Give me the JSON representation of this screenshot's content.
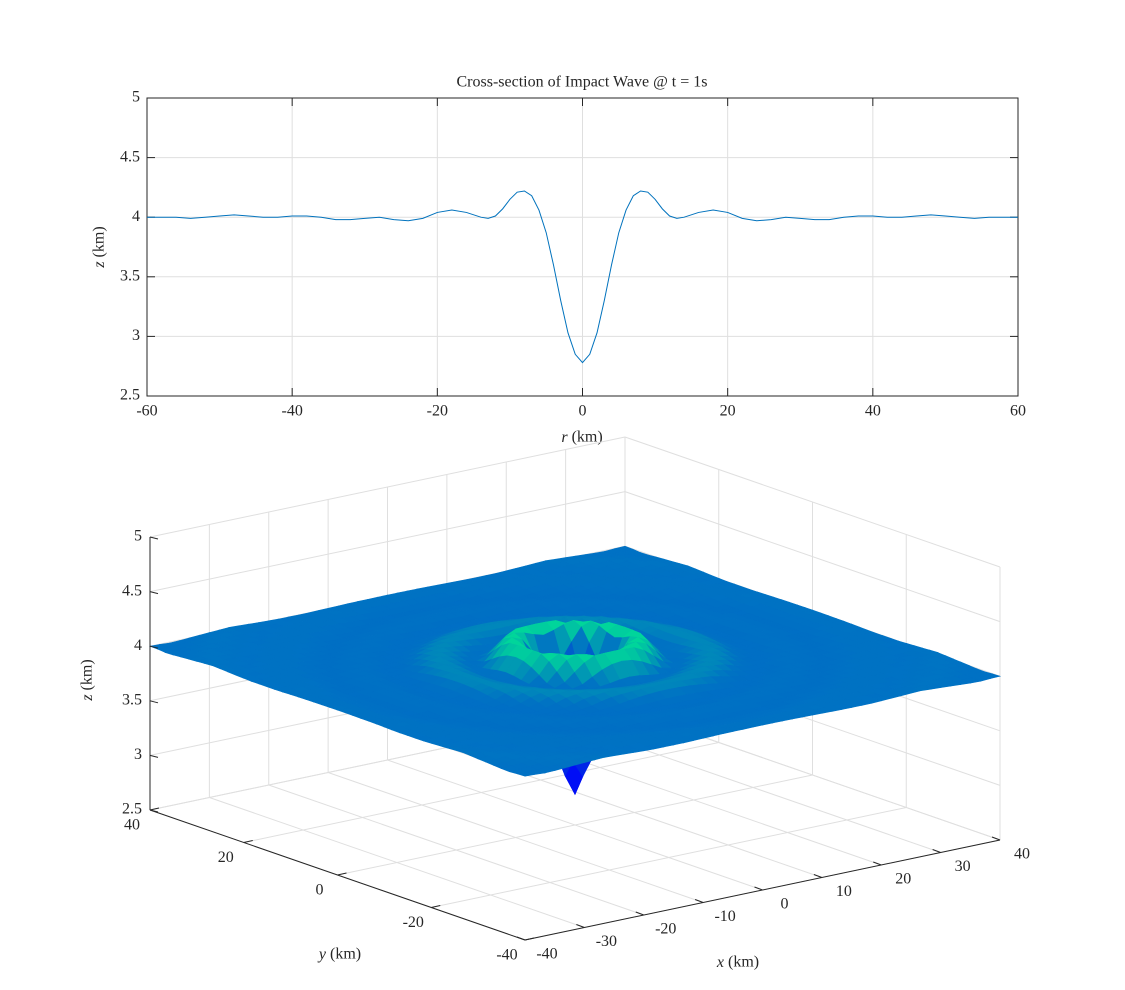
{
  "chart_data": [
    {
      "type": "line",
      "title": "Cross-section of Impact Wave @ t = 1s",
      "xlabel": "r (km)",
      "ylabel": "z (km)",
      "x": [
        -60,
        -58,
        -56,
        -54,
        -52,
        -50,
        -48,
        -46,
        -44,
        -42,
        -40,
        -38,
        -36,
        -34,
        -32,
        -30,
        -28,
        -26,
        -24,
        -22,
        -20,
        -18,
        -16,
        -14,
        -13,
        -12,
        -11,
        -10,
        -9,
        -8,
        -7,
        -6,
        -5,
        -4,
        -3,
        -2,
        -1,
        0,
        1,
        2,
        3,
        4,
        5,
        6,
        7,
        8,
        9,
        10,
        11,
        12,
        13,
        14,
        16,
        18,
        20,
        22,
        24,
        26,
        28,
        30,
        32,
        34,
        36,
        38,
        40,
        42,
        44,
        46,
        48,
        50,
        52,
        54,
        56,
        58,
        60
      ],
      "values": [
        4.0,
        4.0,
        4.0,
        3.99,
        4.0,
        4.01,
        4.02,
        4.01,
        4.0,
        4.0,
        4.01,
        4.01,
        4.0,
        3.98,
        3.98,
        3.99,
        4.0,
        3.98,
        3.97,
        3.99,
        4.04,
        4.06,
        4.04,
        4.0,
        3.99,
        4.01,
        4.07,
        4.15,
        4.21,
        4.22,
        4.18,
        4.06,
        3.87,
        3.6,
        3.3,
        3.03,
        2.85,
        2.78,
        2.85,
        3.03,
        3.3,
        3.6,
        3.87,
        4.06,
        4.18,
        4.22,
        4.21,
        4.15,
        4.07,
        4.01,
        3.99,
        4.0,
        4.04,
        4.06,
        4.04,
        3.99,
        3.97,
        3.98,
        4.0,
        3.99,
        3.98,
        3.98,
        4.0,
        4.01,
        4.01,
        4.0,
        4.0,
        4.01,
        4.02,
        4.01,
        4.0,
        3.99,
        4.0,
        4.0,
        4.0
      ],
      "color": "#0072bd",
      "xlim": [
        -60,
        60
      ],
      "xticks": [
        -60,
        -40,
        -20,
        0,
        20,
        40,
        60
      ],
      "ylim": [
        2.5,
        5
      ],
      "yticks": [
        2.5,
        3,
        3.5,
        4,
        4.5,
        5
      ],
      "grid": true
    },
    {
      "type": "surface",
      "xlabel": "x (km)",
      "ylabel": "y (km)",
      "zlabel": "z (km)",
      "r": [
        0,
        1,
        2,
        3,
        4,
        5,
        6,
        7,
        8,
        9,
        10,
        11,
        12,
        13,
        14,
        16,
        18,
        20,
        22,
        24,
        26,
        28,
        30,
        32,
        34,
        36,
        38,
        40,
        42,
        44,
        46,
        48,
        50,
        52,
        54,
        56,
        58
      ],
      "z": [
        2.78,
        2.85,
        3.03,
        3.3,
        3.6,
        3.87,
        4.06,
        4.18,
        4.22,
        4.21,
        4.15,
        4.07,
        4.01,
        3.99,
        4.0,
        4.04,
        4.06,
        4.04,
        3.99,
        3.97,
        3.98,
        4.0,
        3.99,
        3.98,
        3.98,
        4.0,
        4.01,
        4.01,
        4.0,
        4.0,
        4.01,
        4.02,
        4.01,
        4.0,
        3.99,
        4.0,
        4.0
      ],
      "xlim": [
        -40,
        40
      ],
      "xticks": [
        -40,
        -30,
        -20,
        -10,
        0,
        10,
        20,
        30,
        40
      ],
      "ylim": [
        -40,
        40
      ],
      "yticks": [
        -40,
        -20,
        0,
        20,
        40
      ],
      "zlim": [
        2.5,
        5
      ],
      "zticks": [
        2.5,
        3,
        3.5,
        4,
        4.5,
        5
      ],
      "colormap": [
        "#0000ff",
        "#0010f5",
        "#0020ea",
        "#0035e0",
        "#0048d5",
        "#005ccc",
        "#0073c3",
        "#00e196"
      ],
      "grid": true
    }
  ]
}
